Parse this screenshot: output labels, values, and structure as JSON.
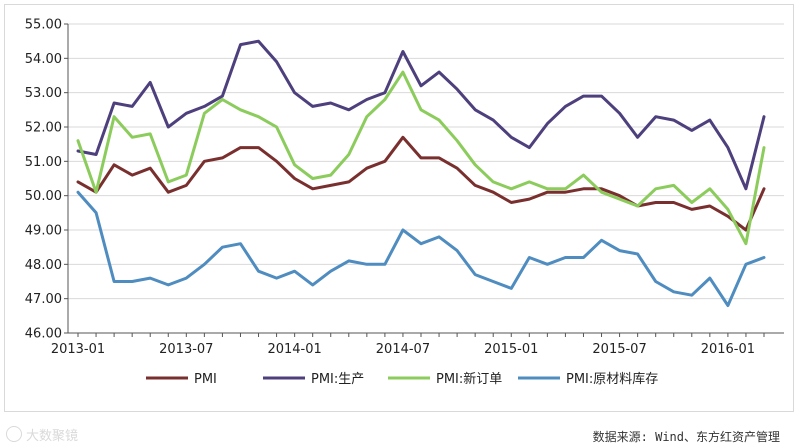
{
  "chart_data": {
    "type": "line",
    "title": "",
    "xlabel": "",
    "ylabel": "",
    "ylim": [
      46.0,
      55.0
    ],
    "y_ticks": [
      "46.00",
      "47.00",
      "48.00",
      "49.00",
      "50.00",
      "51.00",
      "52.00",
      "53.00",
      "54.00",
      "55.00"
    ],
    "x_ticks": [
      {
        "label": "2013-01",
        "index": 0
      },
      {
        "label": "2013-07",
        "index": 6
      },
      {
        "label": "2014-01",
        "index": 12
      },
      {
        "label": "2014-07",
        "index": 18
      },
      {
        "label": "2015-01",
        "index": 24
      },
      {
        "label": "2015-07",
        "index": 30
      },
      {
        "label": "2016-01",
        "index": 36
      }
    ],
    "x": [
      "2013-01",
      "2013-02",
      "2013-03",
      "2013-04",
      "2013-05",
      "2013-06",
      "2013-07",
      "2013-08",
      "2013-09",
      "2013-10",
      "2013-11",
      "2013-12",
      "2014-01",
      "2014-02",
      "2014-03",
      "2014-04",
      "2014-05",
      "2014-06",
      "2014-07",
      "2014-08",
      "2014-09",
      "2014-10",
      "2014-11",
      "2014-12",
      "2015-01",
      "2015-02",
      "2015-03",
      "2015-04",
      "2015-05",
      "2015-06",
      "2015-07",
      "2015-08",
      "2015-09",
      "2015-10",
      "2015-11",
      "2015-12",
      "2016-01",
      "2016-02",
      "2016-03"
    ],
    "grid": {
      "horizontal": true,
      "vertical": false
    },
    "legend_position": "bottom",
    "series": [
      {
        "name": "PMI",
        "color": "#7a2f2f",
        "values": [
          50.4,
          50.1,
          50.9,
          50.6,
          50.8,
          50.1,
          50.3,
          51.0,
          51.1,
          51.4,
          51.4,
          51.0,
          50.5,
          50.2,
          50.3,
          50.4,
          50.8,
          51.0,
          51.7,
          51.1,
          51.1,
          50.8,
          50.3,
          50.1,
          49.8,
          49.9,
          50.1,
          50.1,
          50.2,
          50.2,
          50.0,
          49.7,
          49.8,
          49.8,
          49.6,
          49.7,
          49.4,
          49.0,
          50.2
        ]
      },
      {
        "name": "PMI:生产",
        "color": "#4e3f7d",
        "values": [
          51.3,
          51.2,
          52.7,
          52.6,
          53.3,
          52.0,
          52.4,
          52.6,
          52.9,
          54.4,
          54.5,
          53.9,
          53.0,
          52.6,
          52.7,
          52.5,
          52.8,
          53.0,
          54.2,
          53.2,
          53.6,
          53.1,
          52.5,
          52.2,
          51.7,
          51.4,
          52.1,
          52.6,
          52.9,
          52.9,
          52.4,
          51.7,
          52.3,
          52.2,
          51.9,
          52.2,
          51.4,
          50.2,
          52.3
        ]
      },
      {
        "name": "PMI:新订单",
        "color": "#8ccc5c",
        "values": [
          51.6,
          50.1,
          52.3,
          51.7,
          51.8,
          50.4,
          50.6,
          52.4,
          52.8,
          52.5,
          52.3,
          52.0,
          50.9,
          50.5,
          50.6,
          51.2,
          52.3,
          52.8,
          53.6,
          52.5,
          52.2,
          51.6,
          50.9,
          50.4,
          50.2,
          50.4,
          50.2,
          50.2,
          50.6,
          50.1,
          49.9,
          49.7,
          50.2,
          50.3,
          49.8,
          50.2,
          49.6,
          48.6,
          51.4
        ]
      },
      {
        "name": "PMI:原材料库存",
        "color": "#4f8cc0",
        "values": [
          50.1,
          49.5,
          47.5,
          47.5,
          47.6,
          47.4,
          47.6,
          48.0,
          48.5,
          48.6,
          47.8,
          47.6,
          47.8,
          47.4,
          47.8,
          48.1,
          48.0,
          48.0,
          49.0,
          48.6,
          48.8,
          48.4,
          47.7,
          47.5,
          47.3,
          48.2,
          48.0,
          48.2,
          48.2,
          48.7,
          48.4,
          48.3,
          47.5,
          47.2,
          47.1,
          47.6,
          46.8,
          48.0,
          48.2
        ]
      }
    ]
  },
  "watermark": {
    "text": "大数聚镜"
  },
  "source": {
    "text": "数据来源: Wind、东方红资产管理"
  }
}
